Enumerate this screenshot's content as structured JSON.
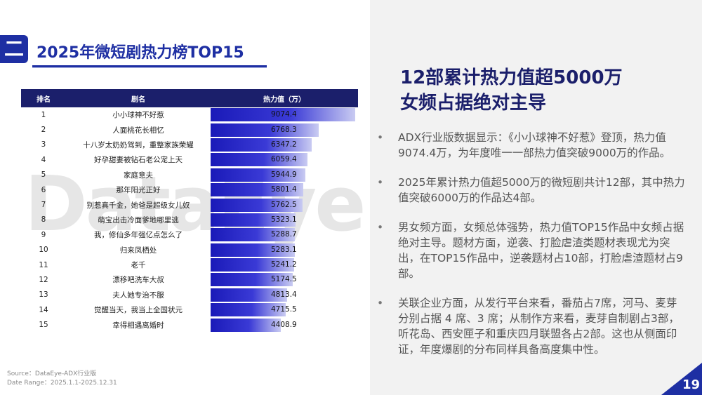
{
  "section": {
    "badge": "二",
    "title": "2025年微短剧热力榜TOP15"
  },
  "watermark": "DataEye",
  "table": {
    "headers": {
      "rank": "排名",
      "name": "剧名",
      "value": "热力值（万）"
    },
    "max_value": 9074.4,
    "rows": [
      {
        "rank": "1",
        "name": "小小球神不好惹",
        "value": 9074.4
      },
      {
        "rank": "2",
        "name": "人面桃花长相忆",
        "value": 6768.3
      },
      {
        "rank": "3",
        "name": "十八岁太奶奶驾到，重整家族荣耀",
        "value": 6347.2
      },
      {
        "rank": "4",
        "name": "好孕甜妻被钻石老公宠上天",
        "value": 6059.4
      },
      {
        "rank": "5",
        "name": "家庭意夫",
        "value": 5944.9
      },
      {
        "rank": "6",
        "name": "那年阳光正好",
        "value": 5801.4
      },
      {
        "rank": "7",
        "name": "别惹真千金，她爸是超级女儿奴",
        "value": 5762.5
      },
      {
        "rank": "8",
        "name": "萌宝出击冷面爹地哪里逃",
        "value": 5323.1
      },
      {
        "rank": "9",
        "name": "我，修仙多年强亿点怎么了",
        "value": 5288.7
      },
      {
        "rank": "10",
        "name": "归来凤栖处",
        "value": 5283.1
      },
      {
        "rank": "11",
        "name": "老千",
        "value": 5241.2
      },
      {
        "rank": "12",
        "name": "漂移吧洗车大叔",
        "value": 5174.5
      },
      {
        "rank": "13",
        "name": "夫人她专治不服",
        "value": 4813.4
      },
      {
        "rank": "14",
        "name": "觉醒当天，我当上全国状元",
        "value": 4715.5
      },
      {
        "rank": "15",
        "name": "幸得相遇离婚时",
        "value": 4408.9
      }
    ]
  },
  "source": {
    "line1": "Source：DataEye-ADX行业版",
    "line2": "Date Range：2025.1.1-2025.12.31"
  },
  "headline": {
    "line1": "12部累计热力值超5000万",
    "line2": "女频占据绝对主导"
  },
  "bullets": [
    "ADX行业版数据显示：《小小球神不好惹》登顶，热力值9074.4万，为年度唯一一部热力值突破9000万的作品。",
    "2025年累计热力值超5000万的微短剧共计12部，其中热力值突破6000万的作品达4部。",
    "男女频方面，女频总体强势，热力值TOP15作品中女频占据绝对主导。题材方面，逆袭、打脸虐渣类题材表现尤为突出，在TOP15作品中，逆袭题材占10部，打脸虐渣题材占9部。",
    "关联企业方面，从发行平台来看，番茄占7席，河马、麦芽分别占据 4 席、3 席；从制作方来看，麦芽自制剧占3部，听花岛、西安匣子和重庆四月联盟各占2部。这也从侧面印证，年度爆剧的分布同样具备高度集中性。"
  ],
  "bullet_marker": "•",
  "page_number": "19",
  "colors": {
    "brand": "#1e2fa3",
    "header_bg": "#1b1f6b"
  }
}
